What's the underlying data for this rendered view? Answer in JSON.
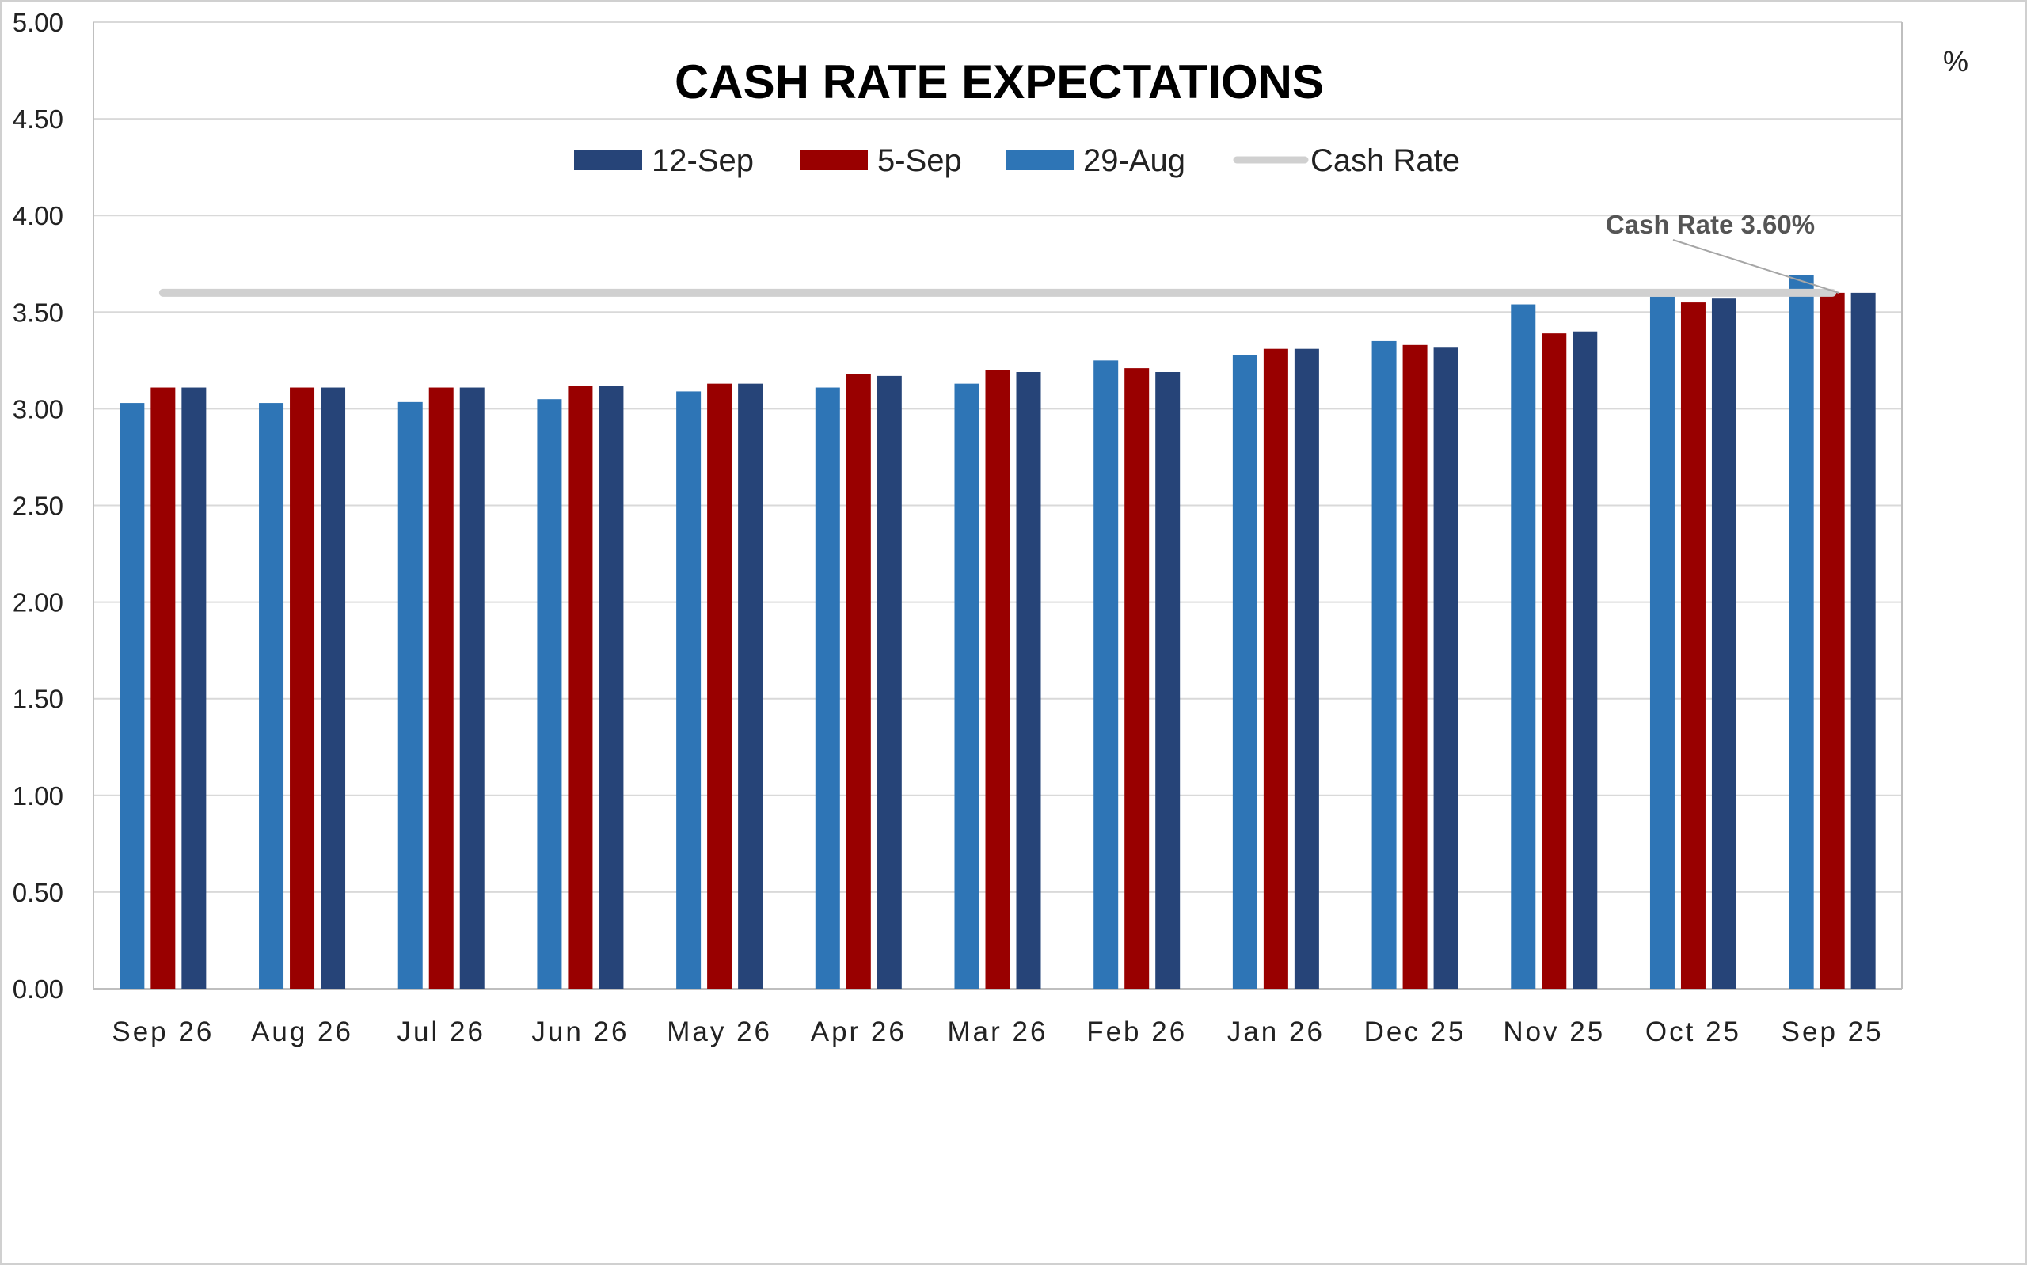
{
  "chart_data": {
    "type": "bar",
    "title": "CASH RATE EXPECTATIONS",
    "unit_label": "%",
    "xlabel": "",
    "ylabel": "",
    "ylim": [
      0,
      5
    ],
    "y_ticks": [
      "0.00",
      "0.50",
      "1.00",
      "1.50",
      "2.00",
      "2.50",
      "3.00",
      "3.50",
      "4.00",
      "4.50",
      "5.00"
    ],
    "grid": true,
    "legend_position": "top-center",
    "categories": [
      "Sep 26",
      "Aug 26",
      "Jul 26",
      "Jun 26",
      "May 26",
      "Apr 26",
      "Mar 26",
      "Feb 26",
      "Jan 26",
      "Dec 25",
      "Nov 25",
      "Oct 25",
      "Sep 25"
    ],
    "series": [
      {
        "name": "29-Aug",
        "color": "#2e75b6",
        "values": [
          3.03,
          3.03,
          3.035,
          3.05,
          3.09,
          3.11,
          3.13,
          3.25,
          3.28,
          3.35,
          3.54,
          3.58,
          3.69
        ]
      },
      {
        "name": "5-Sep",
        "color": "#990000",
        "values": [
          3.11,
          3.11,
          3.11,
          3.12,
          3.13,
          3.18,
          3.2,
          3.21,
          3.31,
          3.33,
          3.39,
          3.55,
          3.6
        ]
      },
      {
        "name": "12-Sep",
        "color": "#264478",
        "values": [
          3.11,
          3.11,
          3.11,
          3.12,
          3.13,
          3.17,
          3.19,
          3.19,
          3.31,
          3.32,
          3.4,
          3.57,
          3.6
        ]
      }
    ],
    "legend_order": [
      "12-Sep",
      "5-Sep",
      "29-Aug",
      "Cash Rate"
    ],
    "reference_line": {
      "name": "Cash Rate",
      "value": 3.6,
      "color": "#d0d0d0"
    },
    "annotation": {
      "text": "Cash Rate 3.60%"
    }
  },
  "colors": {
    "grid": "#d9d9d9",
    "axis": "#bfbfbf",
    "background": "#ffffff",
    "outer_border": "#d0d0d0"
  }
}
